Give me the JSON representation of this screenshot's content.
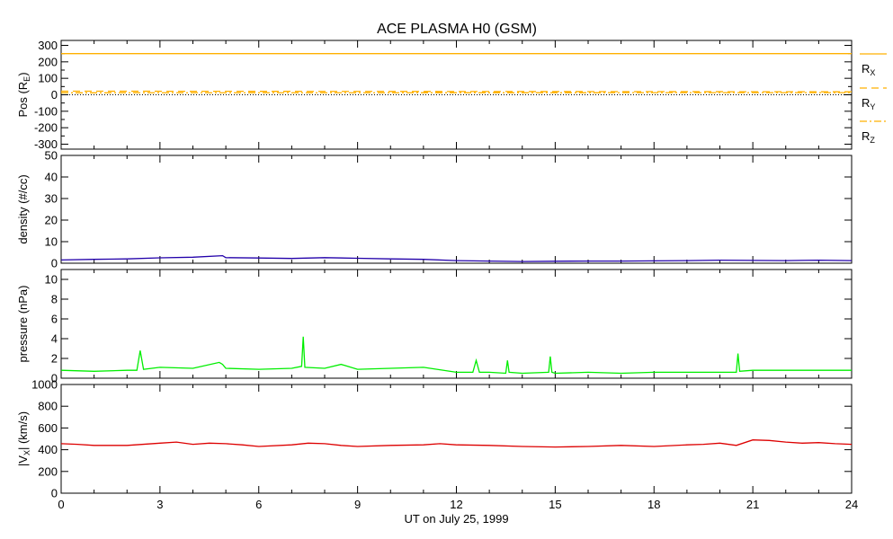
{
  "chart_data": [
    {
      "type": "line",
      "title": "ACE PLASMA H0 (GSM)",
      "ylabel_parts": [
        "Pos (R",
        "E",
        ")"
      ],
      "ylim": [
        -330,
        330
      ],
      "yticks": [
        -300,
        -200,
        -100,
        0,
        100,
        200,
        300
      ],
      "xlim": [
        0,
        24
      ],
      "series": [
        {
          "name": "R",
          "subscript": "X",
          "style": "solid",
          "color": "#ffb000",
          "x": [
            0,
            24
          ],
          "y": [
            250,
            250
          ]
        },
        {
          "name": "R",
          "subscript": "Y",
          "style": "dashed",
          "color": "#ffb000",
          "x": [
            0,
            24
          ],
          "y": [
            22,
            18
          ]
        },
        {
          "name": "R",
          "subscript": "Z",
          "style": "dashdot",
          "color": "#ffb000",
          "x": [
            0,
            24
          ],
          "y": [
            12,
            13
          ]
        }
      ],
      "zero_line": {
        "style": "dotted",
        "color": "#000000",
        "y": 0
      }
    },
    {
      "type": "line",
      "ylabel": "density (#/cc)",
      "ylim": [
        0,
        50
      ],
      "yticks": [
        0,
        10,
        20,
        30,
        40,
        50
      ],
      "xlim": [
        0,
        24
      ],
      "series": [
        {
          "color": "#2200aa",
          "x": [
            0,
            1,
            2,
            3,
            4,
            4.9,
            5,
            6,
            7,
            8,
            9,
            10,
            11,
            12,
            13,
            14,
            15,
            16,
            17,
            18,
            19,
            20,
            21,
            22,
            23,
            24
          ],
          "y": [
            1.5,
            1.8,
            2.0,
            2.5,
            2.8,
            3.5,
            2.6,
            2.4,
            2.2,
            2.6,
            2.3,
            2.0,
            1.8,
            1.2,
            1.0,
            0.8,
            0.9,
            1.0,
            1.0,
            1.1,
            1.2,
            1.4,
            1.3,
            1.2,
            1.4,
            1.2
          ]
        }
      ]
    },
    {
      "type": "line",
      "ylabel": "pressure (nPa)",
      "ylim": [
        0,
        11
      ],
      "yticks": [
        0,
        2,
        4,
        6,
        8,
        10
      ],
      "xlim": [
        0,
        24
      ],
      "series": [
        {
          "color": "#00ee00",
          "x": [
            0,
            1,
            2,
            2.3,
            2.4,
            2.5,
            3,
            4,
            4.8,
            4.9,
            5,
            6,
            7,
            7.3,
            7.35,
            7.4,
            8,
            8.5,
            9,
            10,
            11,
            12,
            12.5,
            12.6,
            12.7,
            13,
            13.5,
            13.55,
            13.6,
            14,
            14.8,
            14.85,
            14.9,
            15,
            16,
            17,
            18,
            19,
            20,
            20.5,
            20.55,
            20.6,
            21,
            22,
            23,
            24
          ],
          "y": [
            0.8,
            0.7,
            0.8,
            0.8,
            2.8,
            0.9,
            1.1,
            1.0,
            1.6,
            1.4,
            1.0,
            0.9,
            1.0,
            1.2,
            4.2,
            1.1,
            1.0,
            1.4,
            0.9,
            1.0,
            1.1,
            0.6,
            0.6,
            1.8,
            0.6,
            0.6,
            0.5,
            1.8,
            0.6,
            0.5,
            0.6,
            2.2,
            0.6,
            0.5,
            0.6,
            0.5,
            0.6,
            0.6,
            0.6,
            0.6,
            2.5,
            0.7,
            0.8,
            0.8,
            0.8,
            0.8
          ]
        }
      ]
    },
    {
      "type": "line",
      "ylabel_parts": [
        "|V",
        "X",
        "| (km/s)"
      ],
      "ylim": [
        0,
        1000
      ],
      "yticks": [
        0,
        200,
        400,
        600,
        800,
        1000
      ],
      "xlim": [
        0,
        24
      ],
      "xticks": [
        0,
        3,
        6,
        9,
        12,
        15,
        18,
        21,
        24
      ],
      "xlabel": "UT on July 25, 1999",
      "series": [
        {
          "color": "#dd0000",
          "x": [
            0,
            0.5,
            1,
            2,
            3,
            3.5,
            4,
            4.5,
            5,
            5.5,
            6,
            7,
            7.5,
            8,
            8.5,
            9,
            10,
            11,
            11.5,
            12,
            13,
            14,
            15,
            16,
            17,
            18,
            19,
            19.5,
            20,
            20.5,
            21,
            21.5,
            22,
            22.5,
            23,
            23.5,
            24
          ],
          "y": [
            455,
            450,
            440,
            440,
            460,
            470,
            450,
            460,
            455,
            445,
            430,
            445,
            460,
            455,
            440,
            430,
            440,
            445,
            455,
            445,
            440,
            430,
            425,
            430,
            440,
            430,
            445,
            450,
            460,
            440,
            490,
            485,
            470,
            460,
            465,
            455,
            450
          ]
        }
      ]
    }
  ]
}
